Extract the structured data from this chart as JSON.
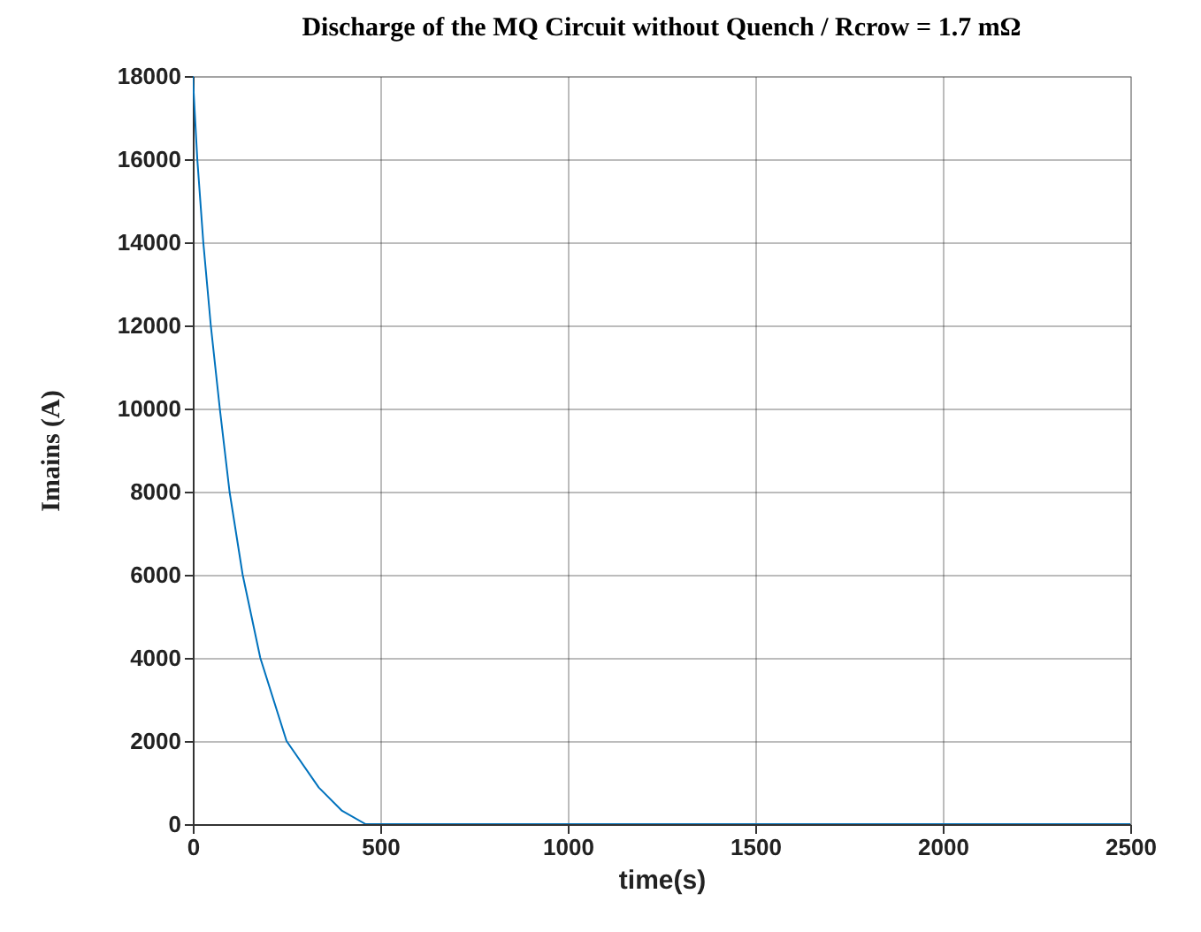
{
  "chart_data": {
    "type": "line",
    "title": "Discharge of the MQ Circuit without Quench / Rcrow = 1.7 mΩ",
    "xlabel": "time(s)",
    "ylabel": "Imains (A)",
    "x": [
      0,
      12,
      28,
      48,
      72,
      98,
      133,
      180,
      250,
      336,
      398,
      461,
      1000,
      1500,
      2000,
      2500
    ],
    "series": [
      {
        "color": "#0072bd",
        "values": [
          18000,
          16000,
          14000,
          12000,
          10000,
          8000,
          6000,
          4000,
          2000,
          880,
          320,
          0,
          0,
          0,
          0,
          0
        ]
      }
    ],
    "xlim": [
      0,
      2500
    ],
    "xticks": [
      0,
      500,
      1000,
      1500,
      2000,
      2500
    ],
    "ylim": [
      0,
      18000
    ],
    "yticks": [
      0,
      2000,
      4000,
      6000,
      8000,
      10000,
      12000,
      14000,
      16000,
      18000
    ],
    "grid": true,
    "marker": "none",
    "line_style": "solid"
  }
}
